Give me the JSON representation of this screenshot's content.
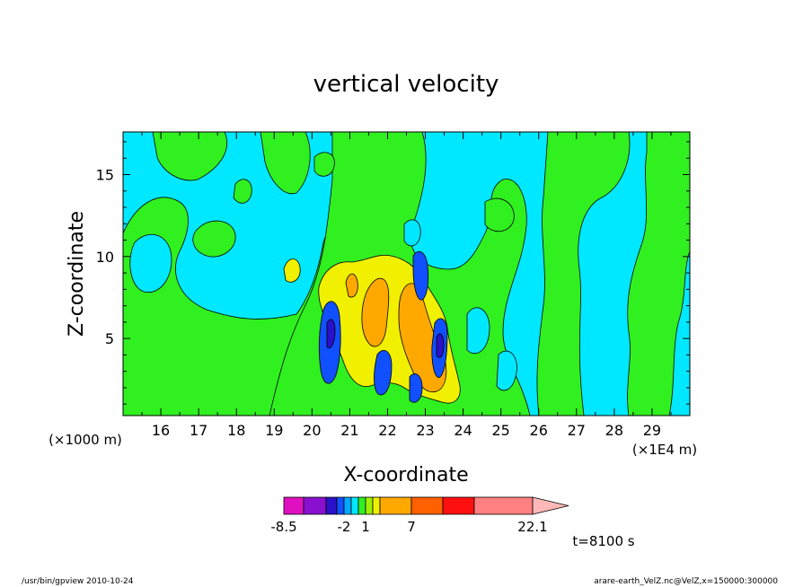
{
  "chart_data": {
    "type": "heatmap",
    "title": "vertical velocity",
    "xlabel": "X-coordinate",
    "ylabel": "Z-coordinate",
    "x_unit_label": "(×1E4 m)",
    "y_unit_label": "(×1000 m)",
    "x_ticks": [
      "16",
      "17",
      "18",
      "19",
      "20",
      "21",
      "22",
      "23",
      "24",
      "25",
      "26",
      "27",
      "28",
      "29"
    ],
    "x_tick_values": [
      16,
      17,
      18,
      19,
      20,
      21,
      22,
      23,
      24,
      25,
      26,
      27,
      28,
      29
    ],
    "y_ticks": [
      "5",
      "10",
      "15"
    ],
    "y_tick_values": [
      5,
      10,
      15
    ],
    "xlim": [
      15.0,
      30.0
    ],
    "ylim": [
      0.3,
      17.6
    ],
    "colorbar": {
      "levels": [
        -8.5,
        -6,
        -4,
        -3,
        -2,
        -1,
        0,
        1,
        2,
        4,
        7,
        10,
        13,
        22.1
      ],
      "colors": [
        "#e010c0",
        "#8a10d0",
        "#2a10c8",
        "#1050ff",
        "#00a8ff",
        "#00e8ff",
        "#30f020",
        "#a0f000",
        "#f0f000",
        "#ffa800",
        "#ff6000",
        "#ff1010",
        "#ff8080",
        "#ffb8b8"
      ],
      "labels": [
        "-8.5",
        "-2",
        "1",
        "7",
        "22.1"
      ],
      "label_values": [
        -8.5,
        -2,
        1,
        7,
        22.1
      ]
    },
    "field_regions": [
      {
        "level": "cyan-background",
        "value_range": [
          -1,
          0
        ]
      },
      {
        "level": "green",
        "value_range": [
          0,
          1
        ]
      },
      {
        "level": "yellow",
        "value_range": [
          2,
          4
        ]
      },
      {
        "level": "orange",
        "value_range": [
          4,
          7
        ]
      },
      {
        "level": "blue",
        "value_range": [
          -4,
          -2
        ]
      }
    ]
  },
  "time_label": "t=8100 s",
  "footer": {
    "left": "/usr/bin/gpview   2010-10-24",
    "right": "arare-earth_VelZ.nc@VelZ,x=150000:300000"
  }
}
